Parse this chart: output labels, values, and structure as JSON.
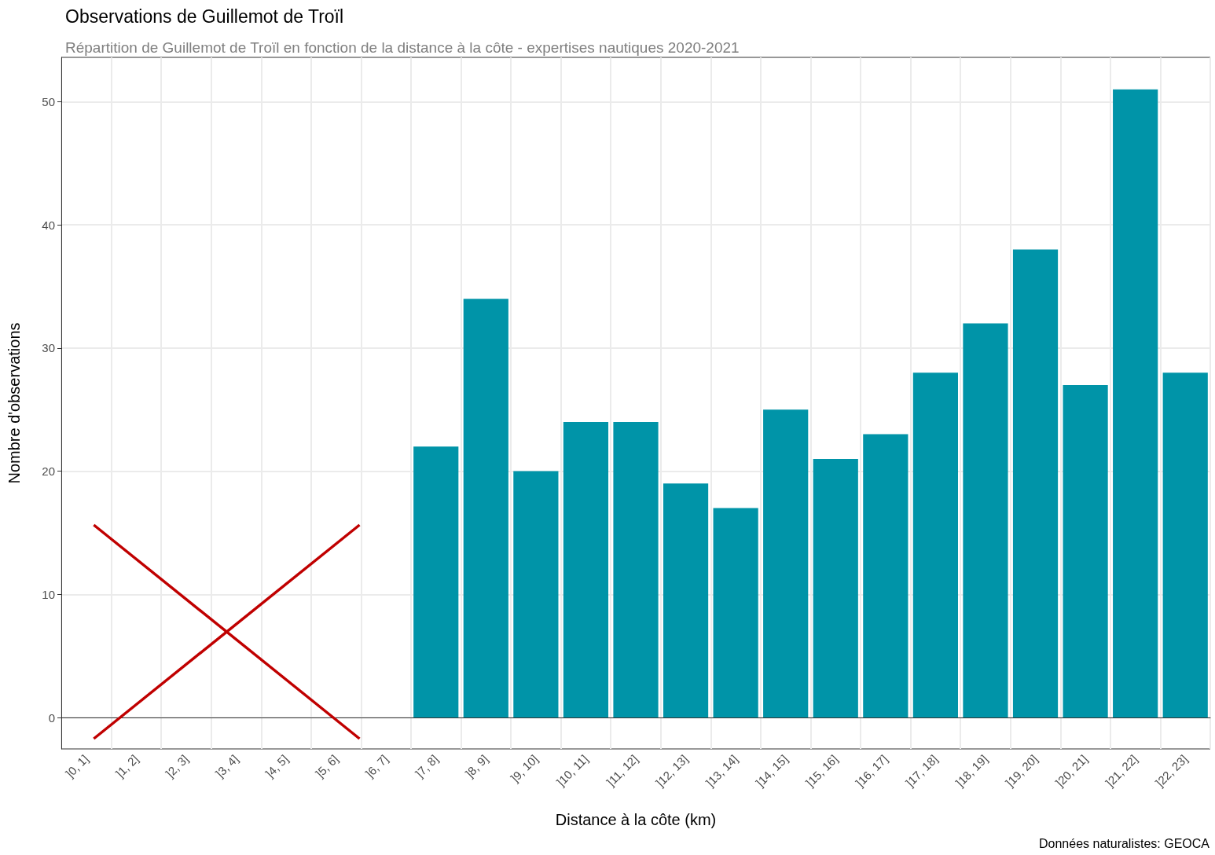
{
  "chart_data": {
    "type": "bar",
    "title": "Observations de Guillemot de Troïl",
    "subtitle": "Répartition de Guillemot de Troïl en fonction de la distance à la côte - expertises nautiques 2020-2021",
    "xlabel": "Distance à la côte (km)",
    "ylabel": "Nombre d'observations",
    "annotations": [
      "Données naturalistes: GEOCA"
    ],
    "categories": [
      "]0, 1]",
      "]1, 2]",
      "]2, 3]",
      "]3, 4]",
      "]4, 5]",
      "]5, 6]",
      "]6, 7]",
      "]7, 8]",
      "]8, 9]",
      "]9, 10]",
      "]10, 11]",
      "]11, 12]",
      "]12, 13]",
      "]13, 14]",
      "]14, 15]",
      "]15, 16]",
      "]16, 17]",
      "]17, 18]",
      "]18, 19]",
      "]19, 20]",
      "]20, 21]",
      "]21, 22]",
      "]22, 23]"
    ],
    "values": [
      null,
      null,
      null,
      null,
      null,
      null,
      null,
      22,
      34,
      20,
      24,
      24,
      19,
      17,
      25,
      21,
      23,
      28,
      32,
      38,
      27,
      51,
      28
    ],
    "color": "#0094a8",
    "ylim": [
      -2.55,
      53.6
    ],
    "yticks": [
      0,
      10,
      20,
      30,
      40,
      50
    ],
    "grid": true
  }
}
